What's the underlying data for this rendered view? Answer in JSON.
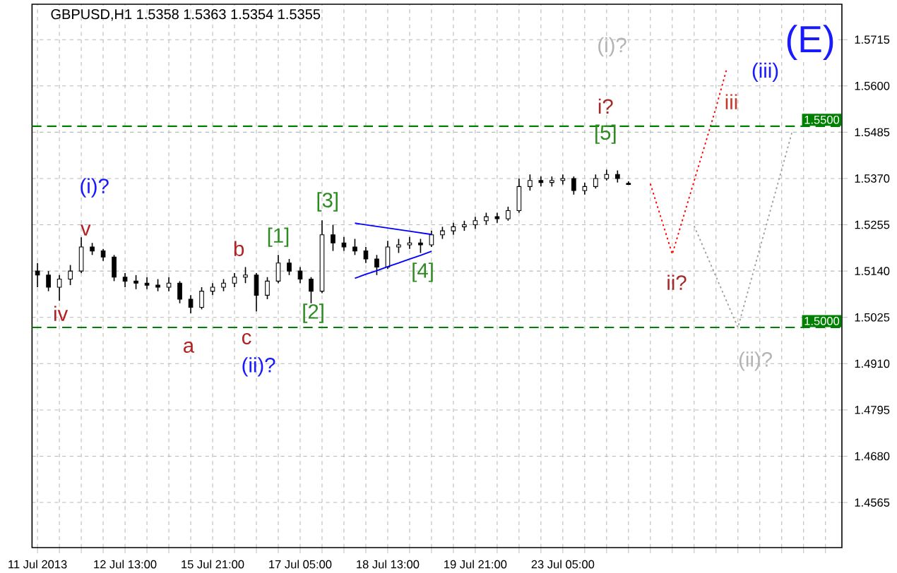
{
  "chart_data": {
    "type": "candlestick",
    "title": "GBPUSD,H1  1.5358 1.5363 1.5354 1.5355",
    "categories": [
      "11 Jul 2013",
      null,
      null,
      null,
      null,
      null,
      null,
      null,
      "12 Jul 13:00",
      null,
      null,
      null,
      null,
      null,
      null,
      null,
      "15 Jul 21:00",
      null,
      null,
      null,
      null,
      null,
      null,
      null,
      "17 Jul 05:00",
      null,
      null,
      null,
      null,
      null,
      null,
      null,
      "18 Jul 13:00",
      null,
      null,
      null,
      null,
      null,
      null,
      null,
      "19 Jul 21:00",
      null,
      null,
      null,
      null,
      null,
      null,
      null,
      "23 Jul 05:00",
      null,
      null,
      null,
      null,
      null,
      null,
      null,
      null,
      null,
      null,
      null,
      null,
      null,
      null,
      null,
      null,
      null,
      null,
      null,
      null,
      null,
      null,
      null,
      null,
      null
    ],
    "ohlc": [
      [
        1.514,
        1.516,
        1.51,
        1.513
      ],
      [
        1.513,
        1.514,
        1.509,
        1.51
      ],
      [
        1.51,
        1.513,
        1.5066,
        1.512
      ],
      [
        1.512,
        1.5155,
        1.5105,
        1.514
      ],
      [
        1.514,
        1.5224,
        1.5135,
        1.52
      ],
      [
        1.52,
        1.521,
        1.518,
        1.519
      ],
      [
        1.519,
        1.5195,
        1.5165,
        1.5175
      ],
      [
        1.5175,
        1.518,
        1.5115,
        1.5125
      ],
      [
        1.5125,
        1.5135,
        1.51,
        1.5115
      ],
      [
        1.5115,
        1.513,
        1.5095,
        1.511
      ],
      [
        1.511,
        1.5125,
        1.5095,
        1.5105
      ],
      [
        1.5105,
        1.512,
        1.509,
        1.51
      ],
      [
        1.51,
        1.5125,
        1.509,
        1.511
      ],
      [
        1.511,
        1.5115,
        1.506,
        1.507
      ],
      [
        1.507,
        1.508,
        1.5035,
        1.505
      ],
      [
        1.505,
        1.51,
        1.5045,
        1.509
      ],
      [
        1.509,
        1.511,
        1.508,
        1.51
      ],
      [
        1.51,
        1.512,
        1.509,
        1.511
      ],
      [
        1.511,
        1.5135,
        1.51,
        1.5125
      ],
      [
        1.5125,
        1.515,
        1.511,
        1.513
      ],
      [
        1.513,
        1.5135,
        1.504,
        1.508
      ],
      [
        1.508,
        1.5125,
        1.507,
        1.5115
      ],
      [
        1.5115,
        1.518,
        1.511,
        1.516
      ],
      [
        1.516,
        1.517,
        1.513,
        1.514
      ],
      [
        1.514,
        1.515,
        1.511,
        1.512
      ],
      [
        1.512,
        1.5125,
        1.506,
        1.509
      ],
      [
        1.509,
        1.5266,
        1.5085,
        1.523
      ],
      [
        1.523,
        1.5255,
        1.519,
        1.521
      ],
      [
        1.521,
        1.5225,
        1.519,
        1.52
      ],
      [
        1.52,
        1.522,
        1.518,
        1.519
      ],
      [
        1.519,
        1.52,
        1.516,
        1.517
      ],
      [
        1.517,
        1.518,
        1.513,
        1.515
      ],
      [
        1.515,
        1.5215,
        1.5145,
        1.52
      ],
      [
        1.52,
        1.522,
        1.5185,
        1.5205
      ],
      [
        1.5205,
        1.5225,
        1.5195,
        1.521
      ],
      [
        1.521,
        1.522,
        1.5185,
        1.5205
      ],
      [
        1.5205,
        1.524,
        1.52,
        1.523
      ],
      [
        1.523,
        1.525,
        1.522,
        1.524
      ],
      [
        1.524,
        1.526,
        1.523,
        1.525
      ],
      [
        1.525,
        1.5265,
        1.524,
        1.5255
      ],
      [
        1.5255,
        1.5275,
        1.5245,
        1.5265
      ],
      [
        1.5265,
        1.5285,
        1.5255,
        1.5275
      ],
      [
        1.5275,
        1.5285,
        1.526,
        1.527
      ],
      [
        1.527,
        1.53,
        1.5265,
        1.529
      ],
      [
        1.529,
        1.537,
        1.5285,
        1.535
      ],
      [
        1.535,
        1.538,
        1.534,
        1.5365
      ],
      [
        1.5365,
        1.5375,
        1.535,
        1.536
      ],
      [
        1.536,
        1.5375,
        1.535,
        1.5365
      ],
      [
        1.5365,
        1.538,
        1.5355,
        1.537
      ],
      [
        1.537,
        1.5375,
        1.533,
        1.534
      ],
      [
        1.534,
        1.536,
        1.533,
        1.535
      ],
      [
        1.535,
        1.538,
        1.5345,
        1.537
      ],
      [
        1.537,
        1.5392,
        1.5365,
        1.538
      ],
      [
        1.538,
        1.539,
        1.536,
        1.537
      ],
      [
        1.5358,
        1.5363,
        1.5354,
        1.5355
      ],
      null,
      null,
      null,
      null,
      null,
      null,
      null,
      null,
      null,
      null,
      null,
      null,
      null,
      null,
      null,
      null,
      null,
      null,
      null
    ],
    "ylim": [
      1.4453,
      1.5803
    ],
    "yticks": [
      {
        "value": 1.4565,
        "label": "1.4565"
      },
      {
        "value": 1.468,
        "label": "1.4680"
      },
      {
        "value": 1.4795,
        "label": "1.4795"
      },
      {
        "value": 1.491,
        "label": "1.4910"
      },
      {
        "value": 1.5025,
        "label": "1.5025"
      },
      {
        "value": 1.514,
        "label": "1.5140"
      },
      {
        "value": 1.5255,
        "label": "1.5255"
      },
      {
        "value": 1.537,
        "label": "1.5370"
      },
      {
        "value": 1.5485,
        "label": "1.5485"
      },
      {
        "value": 1.56,
        "label": "1.5600"
      },
      {
        "value": 1.5715,
        "label": "1.5715"
      }
    ],
    "grid": true,
    "series": [
      {
        "type": "line",
        "color": "#0000ff",
        "values": [
          null,
          null,
          null,
          null,
          null,
          null,
          null,
          null,
          null,
          null,
          null,
          null,
          null,
          null,
          null,
          null,
          null,
          null,
          null,
          null,
          null,
          null,
          null,
          null,
          null,
          null,
          null,
          null,
          null,
          1.5259,
          1.5255,
          1.5251,
          1.5247,
          1.5243,
          1.5239,
          1.5235,
          1.5231,
          null,
          null,
          null,
          null,
          null,
          null,
          null,
          null,
          null,
          null,
          null,
          null,
          null,
          null,
          null,
          null,
          null,
          null,
          null,
          null,
          null,
          null,
          null,
          null,
          null,
          null,
          null,
          null,
          null,
          null,
          null,
          null,
          null,
          null,
          null,
          null,
          null
        ]
      },
      {
        "type": "line",
        "color": "#0000ff",
        "values": [
          null,
          null,
          null,
          null,
          null,
          null,
          null,
          null,
          null,
          null,
          null,
          null,
          null,
          null,
          null,
          null,
          null,
          null,
          null,
          null,
          null,
          null,
          null,
          null,
          null,
          null,
          null,
          null,
          null,
          1.5122,
          1.5132,
          1.5141,
          1.5151,
          1.516,
          1.517,
          1.5179,
          1.5189,
          null,
          null,
          null,
          null,
          null,
          null,
          null,
          null,
          null,
          null,
          null,
          null,
          null,
          null,
          null,
          null,
          null,
          null,
          null,
          null,
          null,
          null,
          null,
          null,
          null,
          null,
          null,
          null,
          null,
          null,
          null,
          null,
          null,
          null,
          null,
          null,
          null
        ]
      },
      {
        "type": "line",
        "color": "#ff0000",
        "line_style": "dotted",
        "values": [
          null,
          null,
          null,
          null,
          null,
          null,
          null,
          null,
          null,
          null,
          null,
          null,
          null,
          null,
          null,
          null,
          null,
          null,
          null,
          null,
          null,
          null,
          null,
          null,
          null,
          null,
          null,
          null,
          null,
          null,
          null,
          null,
          null,
          null,
          null,
          null,
          null,
          null,
          null,
          null,
          null,
          null,
          null,
          null,
          null,
          null,
          null,
          null,
          null,
          null,
          null,
          null,
          null,
          null,
          null,
          null,
          1.5357,
          1.527,
          1.5182,
          1.5273,
          1.5364,
          1.5455,
          1.5546,
          1.5645,
          null,
          null,
          null,
          null,
          null,
          null,
          null,
          null,
          null,
          null
        ]
      },
      {
        "type": "line",
        "color": "#a0a0a0",
        "line_style": "dotted",
        "values": [
          null,
          null,
          null,
          null,
          null,
          null,
          null,
          null,
          null,
          null,
          null,
          null,
          null,
          null,
          null,
          null,
          null,
          null,
          null,
          null,
          null,
          null,
          null,
          null,
          null,
          null,
          null,
          null,
          null,
          null,
          null,
          null,
          null,
          null,
          null,
          null,
          null,
          null,
          null,
          null,
          null,
          null,
          null,
          null,
          null,
          null,
          null,
          null,
          null,
          null,
          null,
          null,
          null,
          null,
          null,
          null,
          null,
          null,
          null,
          null,
          1.5252,
          1.5189,
          1.5126,
          1.5063,
          1.5,
          1.5098,
          1.5196,
          1.5294,
          1.5392,
          1.5491,
          null,
          null,
          null,
          null
        ]
      }
    ],
    "ref_lines": [
      {
        "axis": "y",
        "value": 1.55,
        "label": "1.5500",
        "color": "#008000",
        "line_style": "dashed"
      },
      {
        "axis": "y",
        "value": 1.5,
        "label": "1.5000",
        "color": "#008000",
        "line_style": "dashed"
      }
    ],
    "annotations": [
      "(i)?",
      "v",
      "iv",
      "a",
      "b",
      "c",
      "(ii)?",
      "[1]",
      "[2]",
      "[3]",
      "[4]",
      "[5]",
      "i?",
      "(i)?",
      "ii?",
      "iii",
      "(iii)",
      "(E)",
      "(ii)?"
    ]
  }
}
